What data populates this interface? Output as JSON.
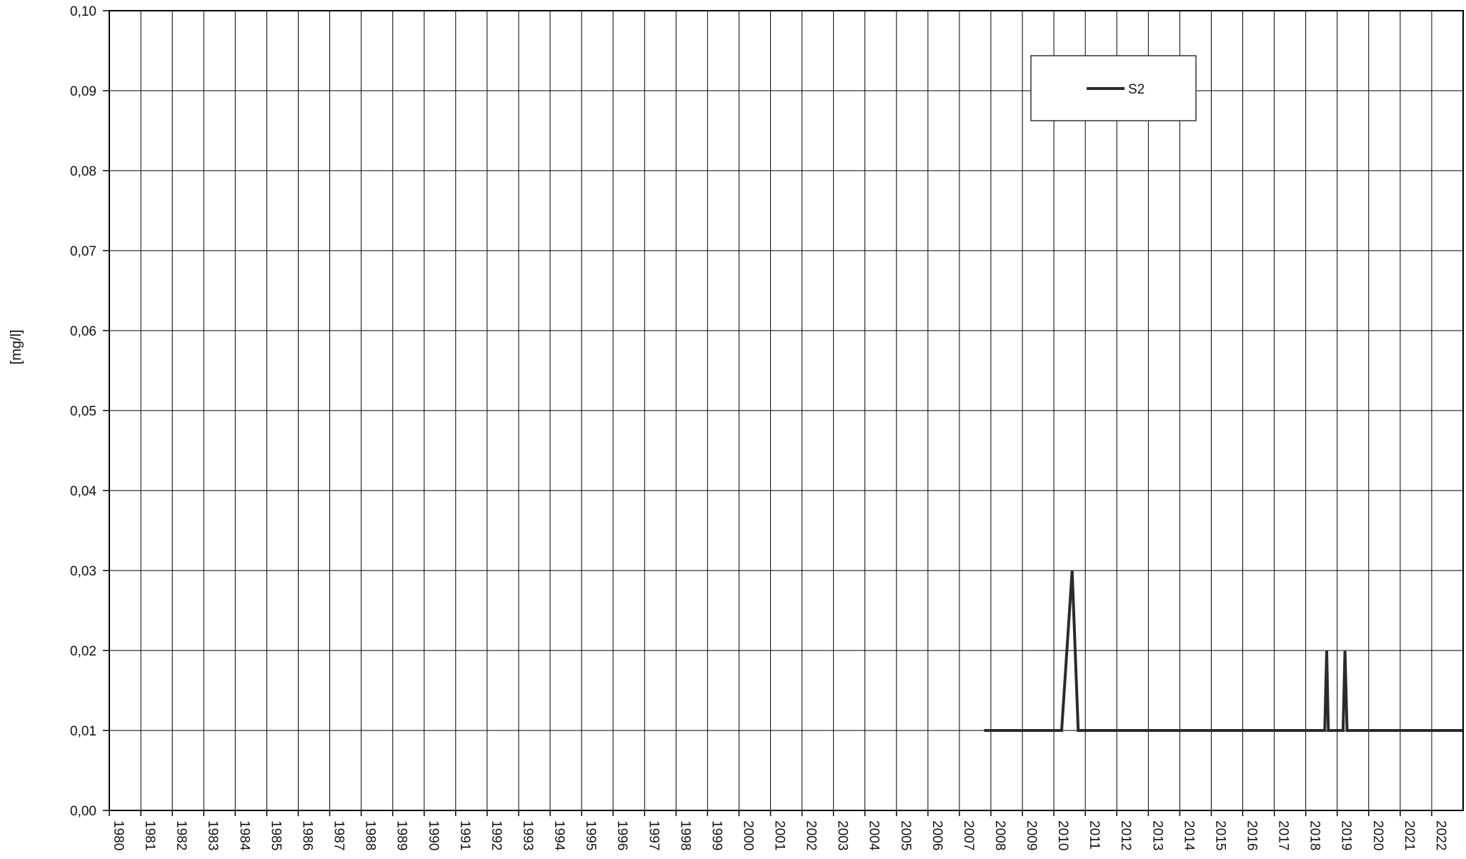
{
  "chart_data": {
    "type": "line",
    "title": "",
    "xlabel": "",
    "ylabel": "[mg/l]",
    "xlim": [
      "1980-01-01",
      "2023-01-01"
    ],
    "ylim": [
      0,
      0.1
    ],
    "x_ticks": [
      "1980",
      "1981",
      "1982",
      "1983",
      "1984",
      "1985",
      "1986",
      "1987",
      "1988",
      "1989",
      "1990",
      "1991",
      "1992",
      "1993",
      "1994",
      "1995",
      "1996",
      "1997",
      "1998",
      "1999",
      "2000",
      "2001",
      "2002",
      "2003",
      "2004",
      "2005",
      "2006",
      "2007",
      "2008",
      "2009",
      "2010",
      "2011",
      "2012",
      "2013",
      "2014",
      "2015",
      "2016",
      "2017",
      "2018",
      "2019",
      "2020",
      "2021",
      "2022"
    ],
    "y_ticks": [
      "0,00",
      "0,01",
      "0,02",
      "0,03",
      "0,04",
      "0,05",
      "0,06",
      "0,07",
      "0,08",
      "0,09",
      "0,10"
    ],
    "grid": true,
    "legend_position": "top-right",
    "colors": {
      "series": "#2b2b2b",
      "grid": "#000000",
      "axis": "#000000"
    },
    "series": [
      {
        "name": "S2",
        "points": [
          {
            "x": "2007-10-15",
            "y": 0.01
          },
          {
            "x": "2010-04-01",
            "y": 0.01
          },
          {
            "x": "2010-08-01",
            "y": 0.03
          },
          {
            "x": "2010-10-10",
            "y": 0.01
          },
          {
            "x": "2018-08-10",
            "y": 0.01
          },
          {
            "x": "2018-09-01",
            "y": 0.02
          },
          {
            "x": "2018-09-20",
            "y": 0.01
          },
          {
            "x": "2019-03-10",
            "y": 0.01
          },
          {
            "x": "2019-04-01",
            "y": 0.02
          },
          {
            "x": "2019-04-25",
            "y": 0.01
          },
          {
            "x": "2022-12-31",
            "y": 0.01
          }
        ]
      }
    ]
  }
}
